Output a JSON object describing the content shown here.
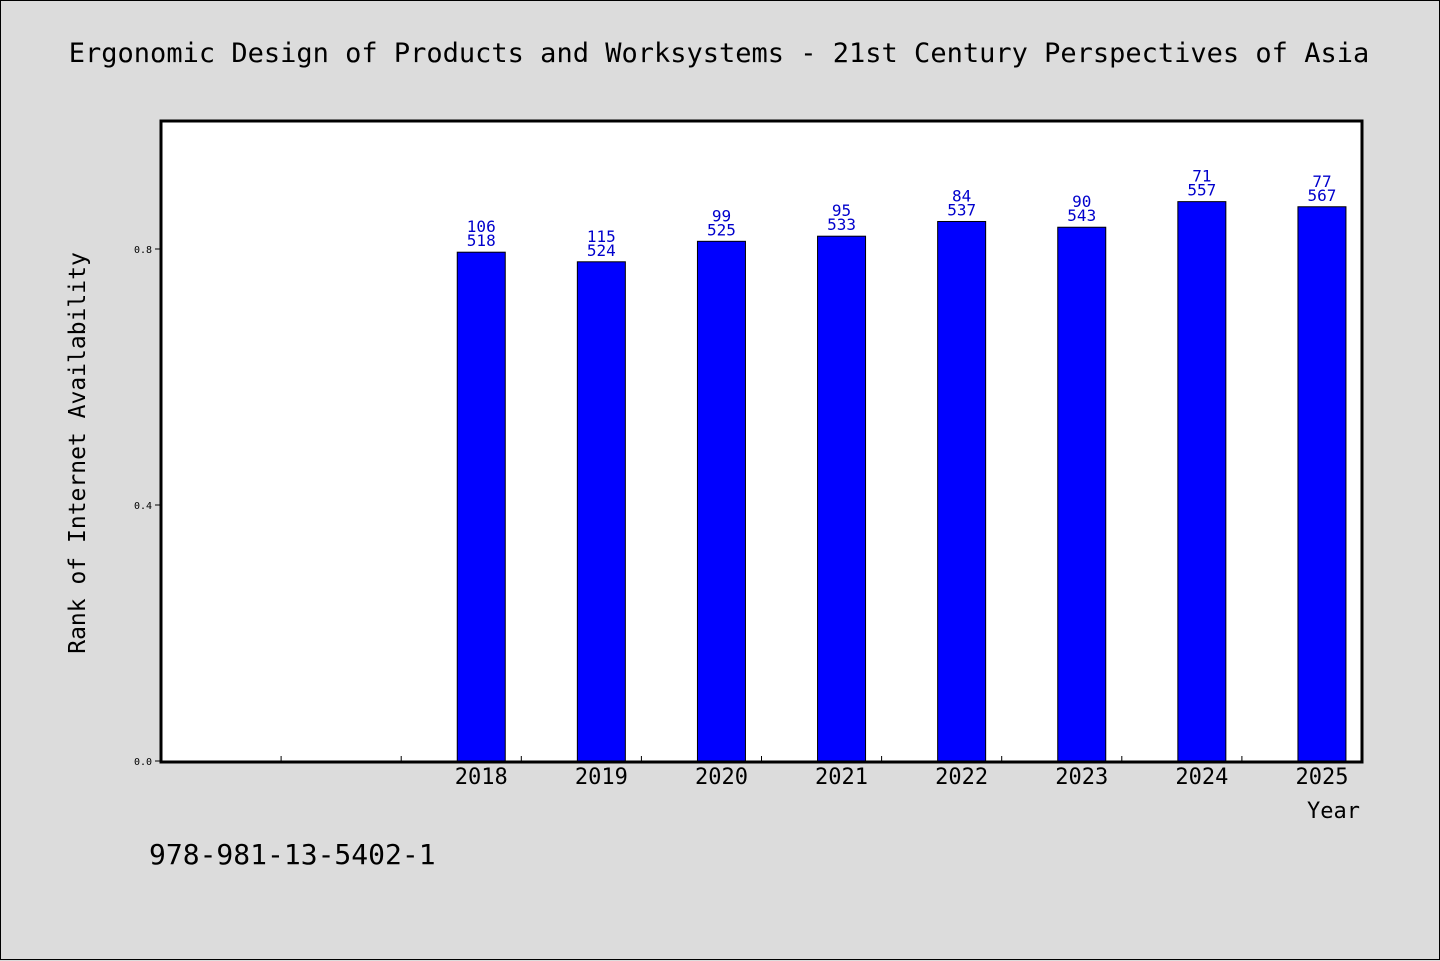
{
  "chart_data": {
    "type": "bar",
    "title": "Ergonomic Design of Products and Worksystems - 21st Century Perspectives of Asia",
    "xlabel": "Year",
    "ylabel": "Rank of Internet Availability",
    "categories": [
      "",
      "",
      "2018",
      "2019",
      "2020",
      "2021",
      "2022",
      "2023",
      "2024",
      "2025"
    ],
    "values": [
      null,
      null,
      0.795,
      0.78,
      0.812,
      0.82,
      0.843,
      0.834,
      0.874,
      0.866
    ],
    "bar_labels_top": [
      "",
      "",
      "106",
      "115",
      "99",
      "95",
      "84",
      "90",
      "71",
      "77"
    ],
    "bar_labels_bottom": [
      "",
      "",
      "518",
      "524",
      "525",
      "533",
      "537",
      "543",
      "557",
      "567"
    ],
    "yticks": [
      0.0,
      0.4,
      0.8
    ],
    "ytick_labels": [
      "0.0",
      "0.4",
      "0.8"
    ],
    "ylim": [
      0.0,
      1.0
    ],
    "grid": false,
    "bar_color": "#0000ff",
    "label_color": "#0000cc"
  },
  "footer": {
    "isbn": "978-981-13-5402-1"
  }
}
